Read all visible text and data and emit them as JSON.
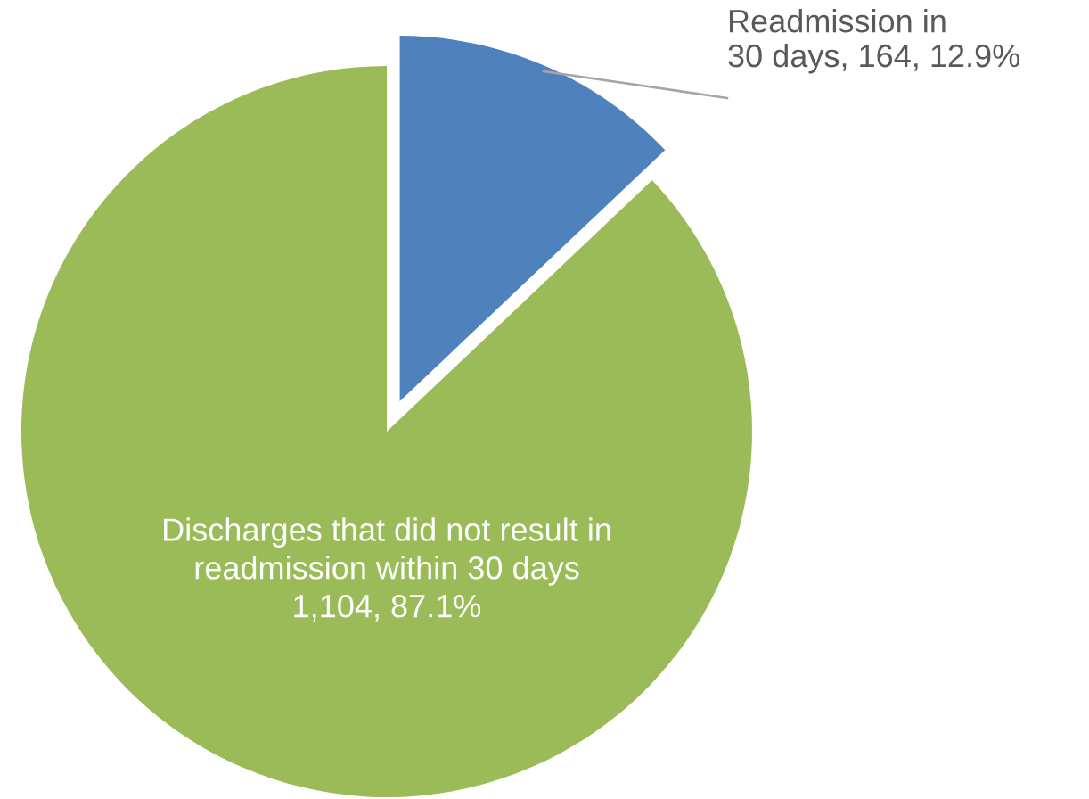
{
  "chart_data": {
    "type": "pie",
    "categories": [
      "Readmission in\n30 days",
      "Discharges that did not result in\nreadmission within 30 days"
    ],
    "values": [
      164,
      1104
    ],
    "value_labels": [
      "164, 12.9%",
      "1,104, 87.1%"
    ],
    "colors": [
      "#4f81bd",
      "#9bbb59"
    ]
  }
}
